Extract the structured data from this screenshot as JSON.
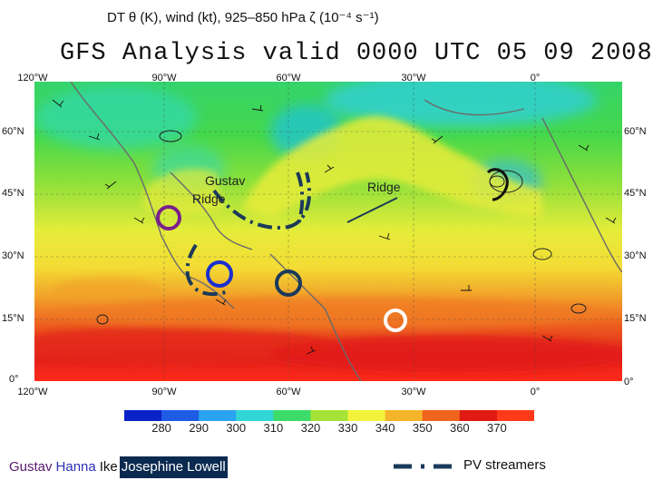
{
  "header": {
    "title": "DT θ (K), wind (kt), 925–850 hPa ζ (10⁻⁴ s⁻¹)",
    "map_title": "GFS Analysis valid 0000 UTC 05 09 2008"
  },
  "map": {
    "lon_labels_top": [
      "120°W",
      "90°W",
      "60°W",
      "30°W",
      "0°"
    ],
    "lon_labels_bottom": [
      "120°W",
      "90°W",
      "60°W",
      "30°W",
      "0°"
    ],
    "lat_labels_left": [
      "60°N",
      "45°N",
      "30°N",
      "15°N",
      "0°"
    ],
    "lat_labels_right": [
      "60°N",
      "45°N",
      "30°N",
      "15°N",
      "0°"
    ],
    "annotations": {
      "gustav_ridge_line1": "Gustav",
      "gustav_ridge_line2": "Ridge",
      "ridge": "Ridge"
    },
    "storm_marker_colors": {
      "gustav": "#7a1f8c",
      "hanna": "#1a2fd0",
      "ike": "#1b3a5a",
      "josephine": "#ffffff"
    },
    "pv_streamer_color": "#1b3a5a"
  },
  "colorbar": {
    "ticks": [
      "280",
      "290",
      "300",
      "310",
      "320",
      "330",
      "340",
      "350",
      "360",
      "370"
    ],
    "colors": [
      "#0a23c8",
      "#1e5ce6",
      "#2aa3f0",
      "#33d6d6",
      "#3ddc6a",
      "#a5e436",
      "#f2f23a",
      "#f5b42a",
      "#f0641e",
      "#e01a12",
      "#ff3a1a"
    ]
  },
  "legend": {
    "gustav": "Gustav",
    "hanna": "Hanna",
    "ike": "Ike",
    "josephine": "Josephine",
    "lowell": "Lowell",
    "pv_streamers": "PV streamers"
  },
  "legend_colors": {
    "gustav": "#5a1870",
    "hanna": "#2b2fb5",
    "ike": "#111111",
    "highlight_bg": "#0b2a4f"
  }
}
